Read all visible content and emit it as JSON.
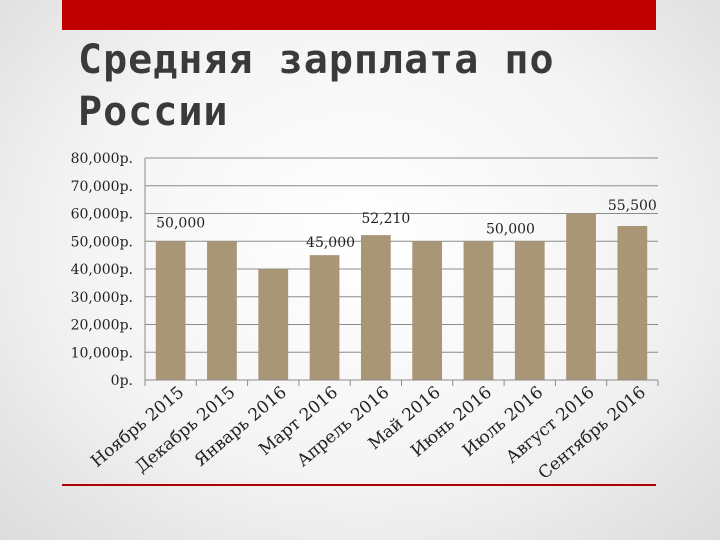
{
  "slide": {
    "title": "Средняя зарплата по России",
    "accent_color": "#c00000",
    "rule_color": "#b10000"
  },
  "chart_data": {
    "type": "bar",
    "categories": [
      "Ноябрь 2015",
      "Декабрь 2015",
      "Январь 2016",
      "Март 2016",
      "Апрель 2016",
      "Май 2016",
      "Июнь 2016",
      "Июль 2016",
      "Август 2016",
      "Сентябрь 2016"
    ],
    "values": [
      50000,
      50000,
      40000,
      45000,
      52210,
      50000,
      50000,
      50000,
      60000,
      55500
    ],
    "data_labels": [
      {
        "index": 0,
        "text": "50,000"
      },
      {
        "index": 3,
        "text": "45,000"
      },
      {
        "index": 4,
        "text": "52,210"
      },
      {
        "index": 6,
        "text": "50,000"
      },
      {
        "index": 9,
        "text": "55,500"
      }
    ],
    "ylim": [
      0,
      80000
    ],
    "y_ticks": [
      0,
      10000,
      20000,
      30000,
      40000,
      50000,
      60000,
      70000,
      80000
    ],
    "y_tick_labels": [
      "0р.",
      "10,000р.",
      "20,000р.",
      "30,000р.",
      "40,000р.",
      "50,000р.",
      "60,000р.",
      "70,000р.",
      "80,000р."
    ],
    "grid": true,
    "bar_color": "#a99677",
    "xlabel": "",
    "ylabel": ""
  }
}
